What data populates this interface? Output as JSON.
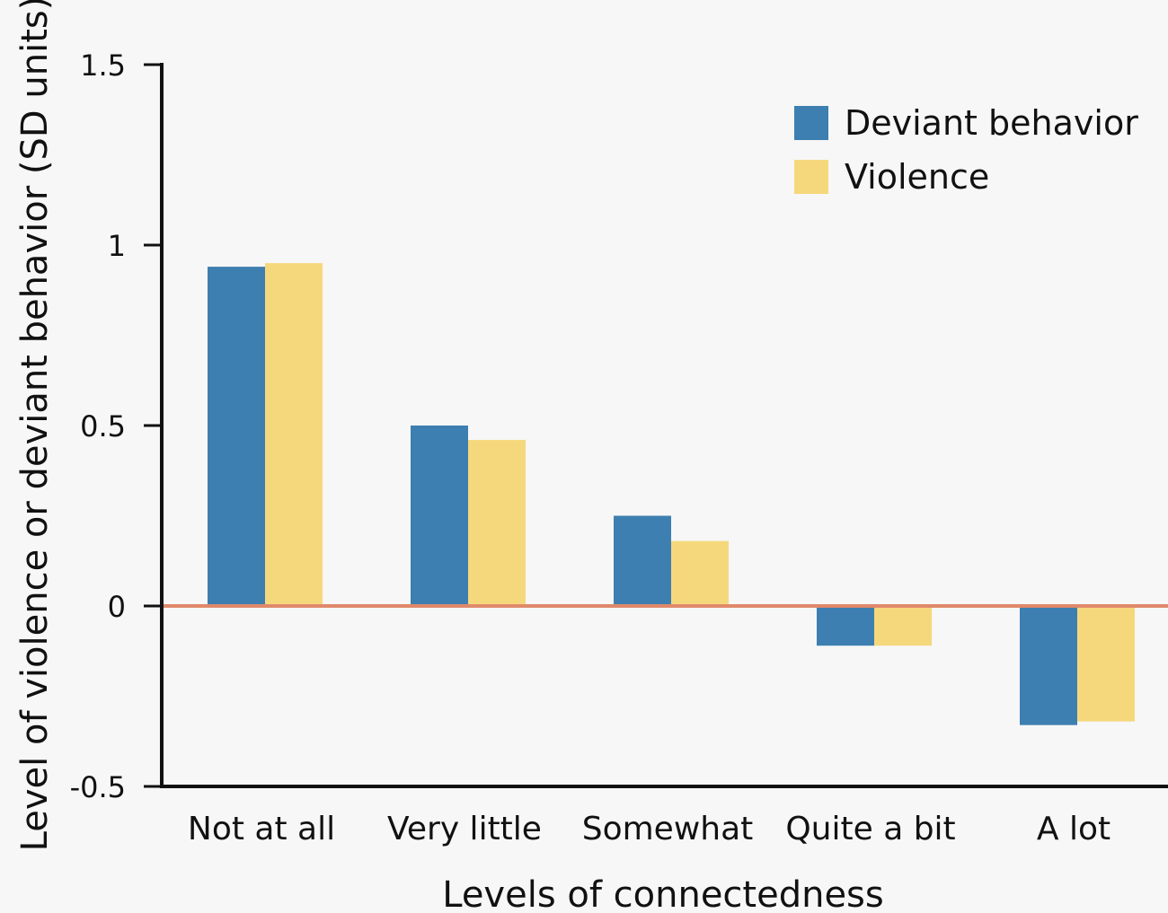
{
  "chart_data": {
    "type": "bar",
    "title": "",
    "xlabel": "Levels of connectedness",
    "ylabel": "Level of violence or deviant behavior (SD units)",
    "categories": [
      "Not at all",
      "Very little",
      "Somewhat",
      "Quite a bit",
      "A lot"
    ],
    "series": [
      {
        "name": "Deviant behavior",
        "values": [
          0.94,
          0.5,
          0.25,
          -0.11,
          -0.33
        ]
      },
      {
        "name": "Violence",
        "values": [
          0.95,
          0.46,
          0.18,
          -0.11,
          -0.32
        ]
      }
    ],
    "ylim": [
      -0.5,
      1.5
    ],
    "yticks": [
      1.5,
      1,
      0.5,
      0,
      -0.5
    ],
    "ytick_labels": [
      "1.5",
      "1",
      "0.5",
      "0",
      "-0.5"
    ],
    "legend_position": "top-right",
    "grid": false,
    "colors": {
      "Deviant behavior": "#3d7fb0",
      "Violence": "#f6d87c",
      "zero_line": "#e0896a",
      "axis": "#111111",
      "background": "#f7f7f7"
    }
  }
}
